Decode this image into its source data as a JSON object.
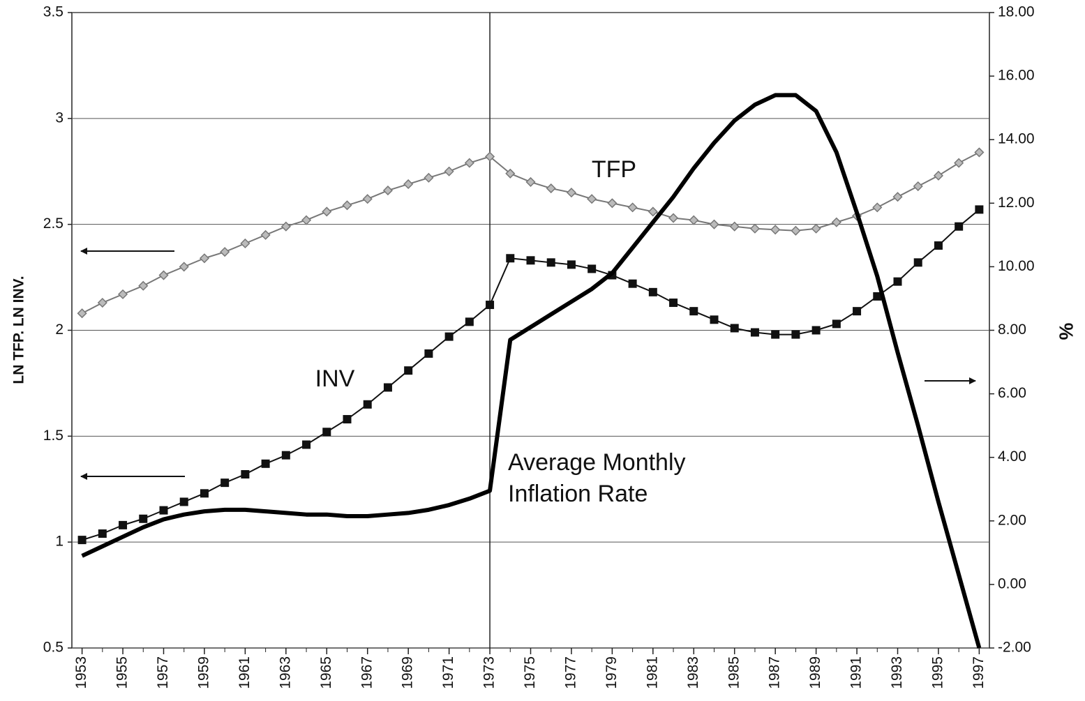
{
  "chart_data": {
    "type": "line",
    "y_label": "LN TFP. LN INV.",
    "y2_label": "%",
    "annotations": [
      "TFP",
      "INV",
      "Average Monthly",
      "Inflation Rate"
    ],
    "x": [
      1953,
      1954,
      1955,
      1956,
      1957,
      1958,
      1959,
      1960,
      1961,
      1962,
      1963,
      1964,
      1965,
      1966,
      1967,
      1968,
      1969,
      1970,
      1971,
      1972,
      1973,
      1974,
      1975,
      1976,
      1977,
      1978,
      1979,
      1980,
      1981,
      1982,
      1983,
      1984,
      1985,
      1986,
      1987,
      1988,
      1989,
      1990,
      1991,
      1992,
      1993,
      1994,
      1995,
      1996,
      1997
    ],
    "series": [
      {
        "name": "TFP",
        "color": "#777777",
        "marker": "diamond",
        "values": [
          2.08,
          2.13,
          2.17,
          2.21,
          2.26,
          2.3,
          2.34,
          2.37,
          2.41,
          2.45,
          2.49,
          2.52,
          2.56,
          2.59,
          2.62,
          2.66,
          2.69,
          2.72,
          2.75,
          2.79,
          2.82,
          2.74,
          2.7,
          2.67,
          2.65,
          2.62,
          2.6,
          2.58,
          2.56,
          2.53,
          2.52,
          2.5,
          2.49,
          2.48,
          2.475,
          2.47,
          2.48,
          2.51,
          2.54,
          2.58,
          2.63,
          2.68,
          2.73,
          2.79,
          2.84
        ]
      },
      {
        "name": "INV",
        "color": "#111111",
        "marker": "square",
        "values": [
          1.01,
          1.04,
          1.08,
          1.11,
          1.15,
          1.19,
          1.23,
          1.28,
          1.32,
          1.37,
          1.41,
          1.46,
          1.52,
          1.58,
          1.65,
          1.73,
          1.81,
          1.89,
          1.97,
          2.04,
          2.12,
          2.34,
          2.33,
          2.32,
          2.31,
          2.29,
          2.26,
          2.22,
          2.18,
          2.13,
          2.09,
          2.05,
          2.01,
          1.99,
          1.98,
          1.98,
          2.0,
          2.03,
          2.09,
          2.16,
          2.23,
          2.32,
          2.4,
          2.49,
          2.57
        ]
      },
      {
        "name": "Average Monthly Inflation Rate",
        "color": "#000000",
        "marker": "none",
        "axis": "y2",
        "values": [
          0.9,
          1.2,
          1.5,
          1.8,
          2.05,
          2.2,
          2.3,
          2.35,
          2.35,
          2.3,
          2.25,
          2.2,
          2.2,
          2.15,
          2.15,
          2.2,
          2.25,
          2.35,
          2.5,
          2.7,
          2.95,
          7.7,
          8.1,
          8.5,
          8.9,
          9.3,
          9.8,
          10.6,
          11.4,
          12.2,
          13.1,
          13.9,
          14.6,
          15.1,
          15.4,
          15.4,
          14.9,
          13.6,
          11.7,
          9.7,
          7.3,
          5.0,
          2.6,
          0.3,
          -2.0
        ]
      }
    ],
    "reference_line": 1973,
    "xlim": [
      1952.5,
      1997.5
    ],
    "xticks": [
      1953,
      1955,
      1957,
      1959,
      1961,
      1963,
      1965,
      1967,
      1969,
      1971,
      1973,
      1975,
      1977,
      1979,
      1981,
      1983,
      1985,
      1987,
      1989,
      1991,
      1993,
      1995,
      1997
    ],
    "ylim": [
      0.5,
      3.5
    ],
    "yticks": [
      0.5,
      1,
      1.5,
      2,
      2.5,
      3,
      3.5
    ],
    "y2lim": [
      -2,
      18
    ],
    "y2ticks": [
      {
        "value": -2,
        "label": "-2.00"
      },
      {
        "value": 0,
        "label": "0.00"
      },
      {
        "value": 2,
        "label": "2.00"
      },
      {
        "value": 4,
        "label": "4.00"
      },
      {
        "value": 6,
        "label": "6.00"
      },
      {
        "value": 8,
        "label": "8.00"
      },
      {
        "value": 10,
        "label": "10.00"
      },
      {
        "value": 12,
        "label": "12.00"
      },
      {
        "value": 14,
        "label": "14.00"
      },
      {
        "value": 16,
        "label": "16.00"
      },
      {
        "value": 18,
        "label": "18.00"
      }
    ],
    "grid": true
  }
}
